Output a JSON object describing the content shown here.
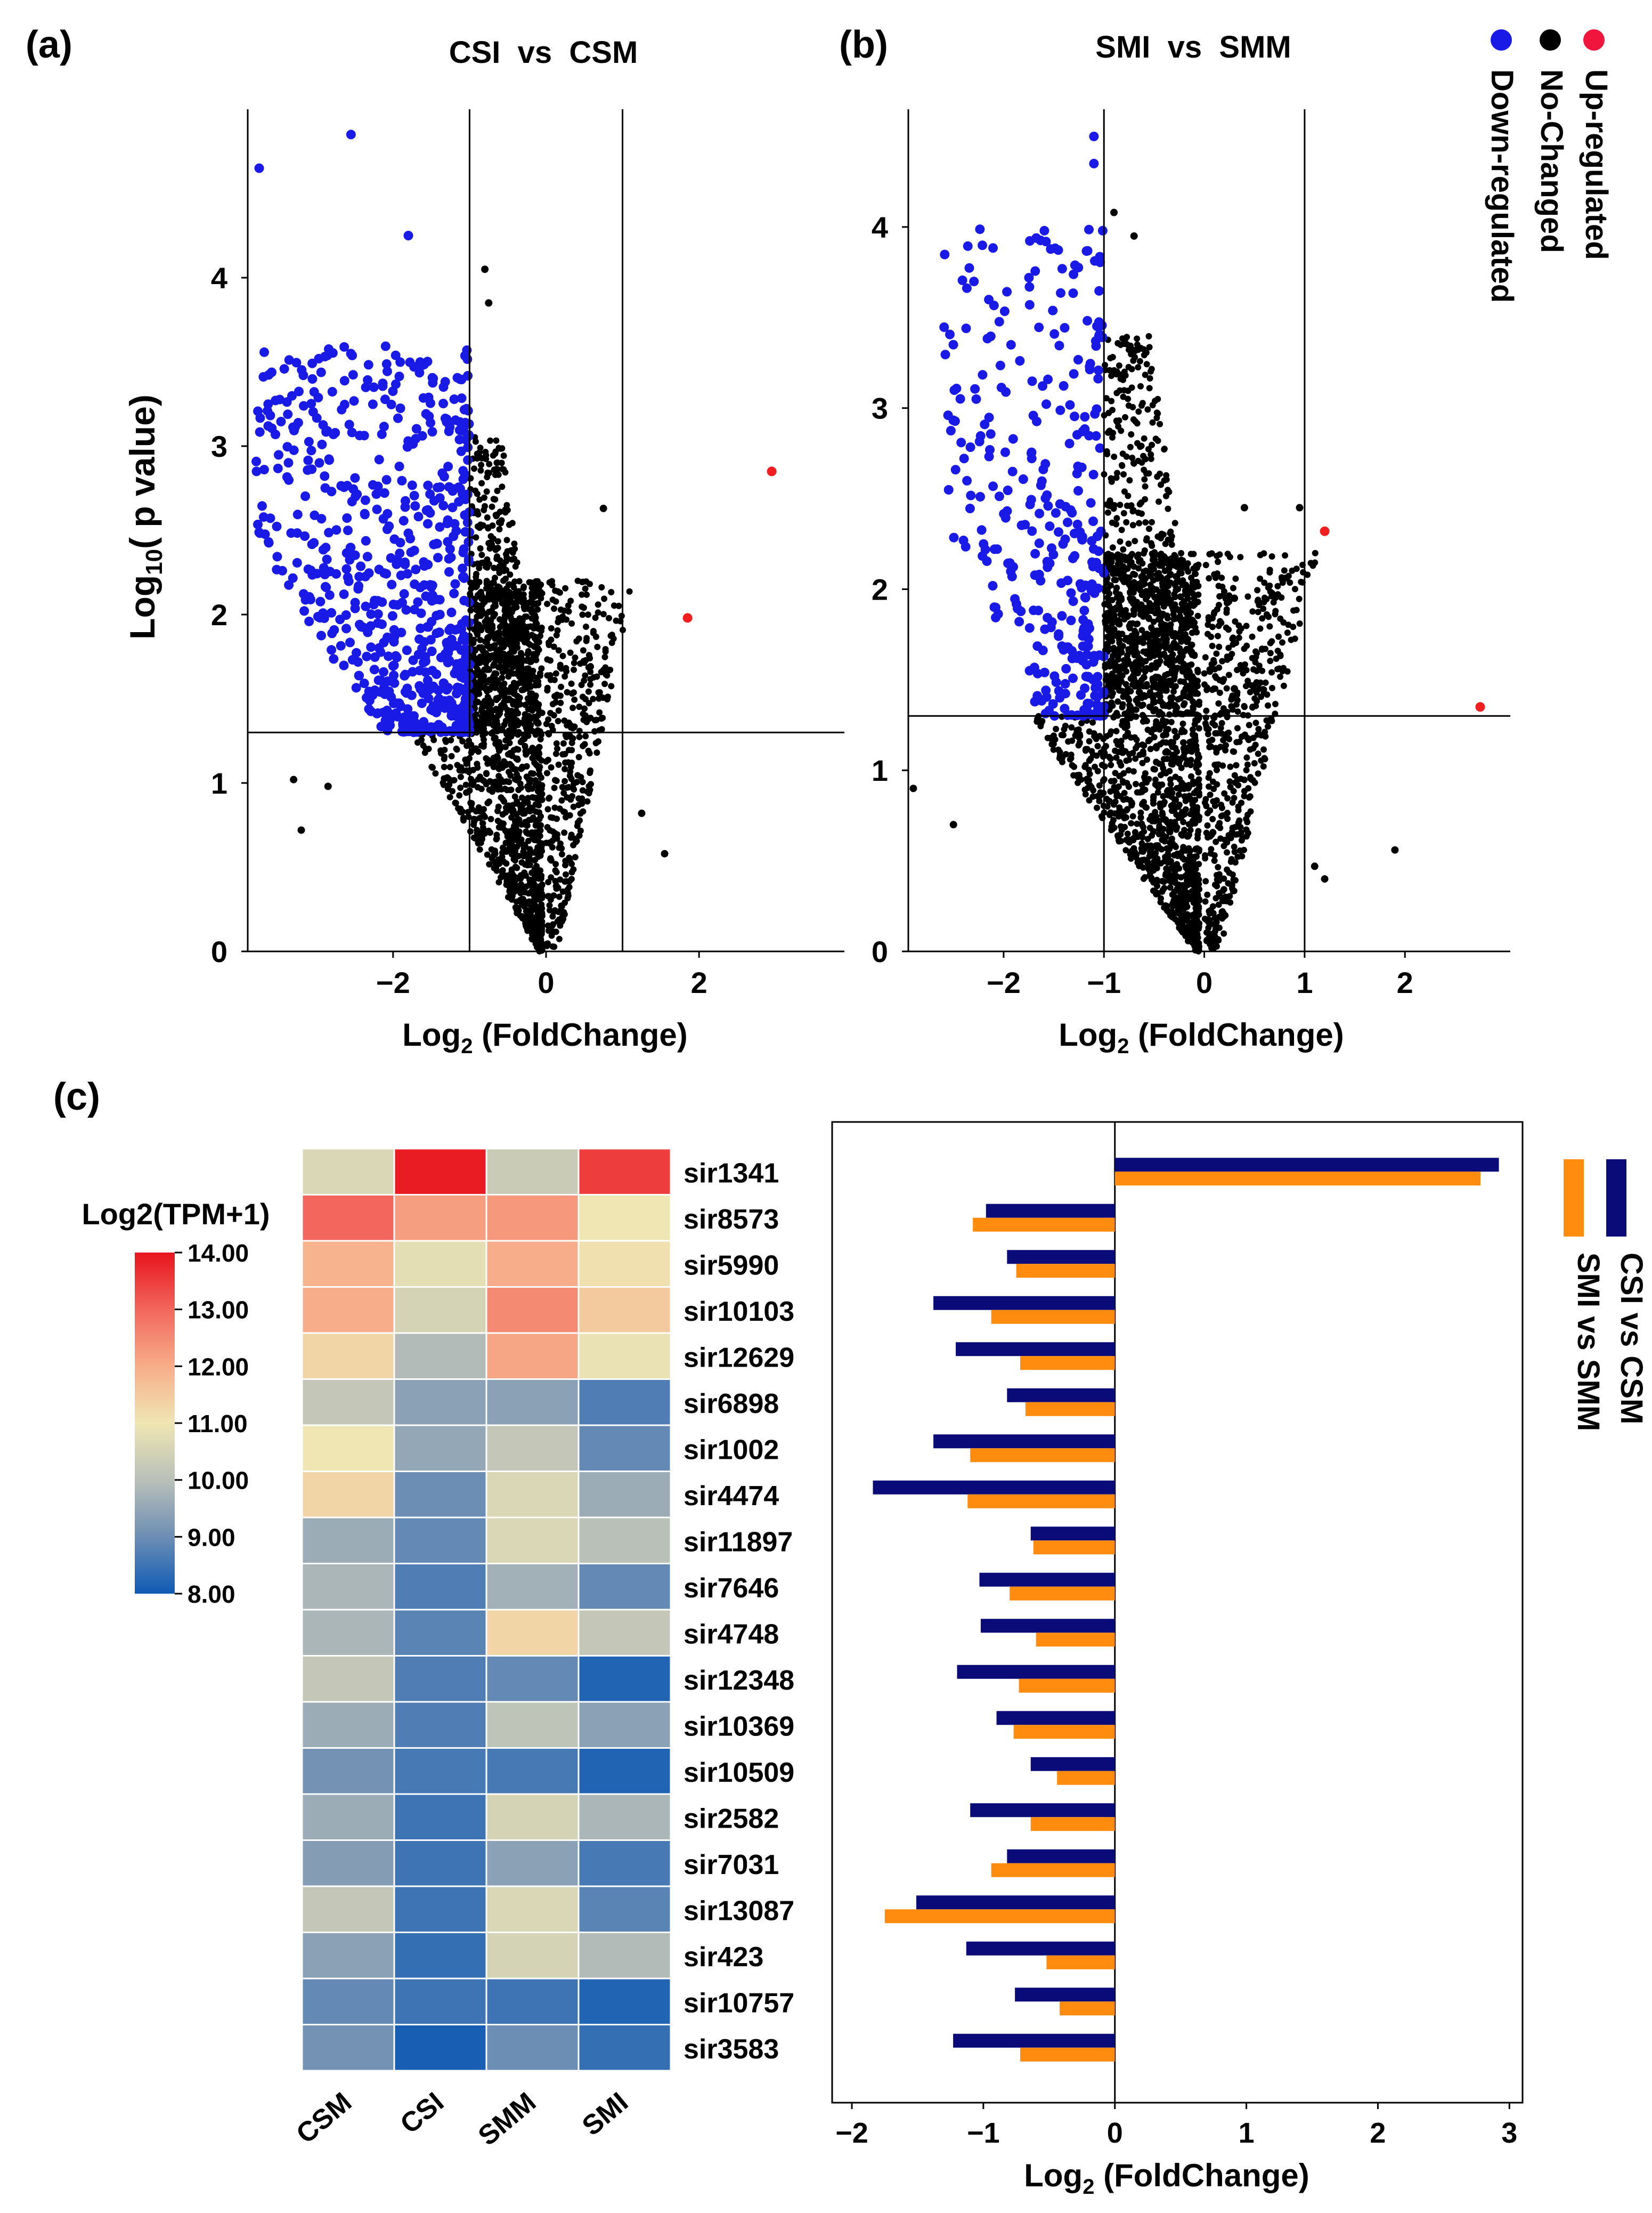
{
  "colors": {
    "down": "#1a1ae6",
    "nochange": "#000000",
    "up": "#f01e1e",
    "csi_bar": "#0a0a78",
    "smi_bar": "#ff8c0f",
    "grid": "#000000"
  },
  "legend_volcano": [
    {
      "label": "Up-regulated",
      "color": "#f0153c"
    },
    {
      "label": "No-Changed",
      "color": "#000000"
    },
    {
      "label": "Down-regulated",
      "color": "#1a1ae6"
    }
  ],
  "chart_data": [
    {
      "panel": "(a)",
      "type": "scatter",
      "title": "CSI  vs  CSM",
      "xlabel_main": "Log",
      "xlabel_sub": "2",
      "xlabel_rest": " (FoldChange)",
      "ylabel_main": "Log",
      "ylabel_sub": "10",
      "ylabel_rest": "( p value)",
      "xlim": [
        -3.9,
        3.9
      ],
      "ylim": [
        0,
        5.0
      ],
      "xticks": [
        -2,
        0,
        2
      ],
      "yticks": [
        0,
        1,
        2,
        3,
        4
      ],
      "xtick_labels": [
        "−2",
        "0",
        "2"
      ],
      "ytick_labels": [
        "0",
        "1",
        "2",
        "3",
        "4"
      ],
      "vlines": [
        -1,
        1
      ],
      "hline": 1.3,
      "up_points": [
        [
          2.95,
          2.85
        ],
        [
          1.85,
          1.98
        ]
      ],
      "outlier_points": [
        [
          -3.75,
          4.65
        ],
        [
          -2.55,
          4.85
        ],
        [
          -1.8,
          4.25
        ],
        [
          -0.8,
          4.05
        ],
        [
          -0.75,
          3.85
        ],
        [
          0.75,
          2.63
        ],
        [
          1.25,
          0.82
        ],
        [
          1.55,
          0.58
        ],
        [
          -3.2,
          0.72
        ],
        [
          -3.3,
          1.02
        ],
        [
          -2.85,
          0.98
        ]
      ],
      "cloud": {
        "n_down": 650,
        "n_nochange": 1700,
        "seed": 11,
        "x_min": -3.8,
        "y_top": 3.6
      }
    },
    {
      "panel": "(b)",
      "type": "scatter",
      "title": "SMI  vs  SMM",
      "xlabel_main": "Log",
      "xlabel_sub": "2",
      "xlabel_rest": " (FoldChange)",
      "xlim": [
        -2.95,
        3.05
      ],
      "ylim": [
        0,
        4.65
      ],
      "xticks": [
        -2,
        -1,
        0,
        1,
        2
      ],
      "yticks": [
        0,
        1,
        2,
        3,
        4
      ],
      "xtick_labels": [
        "−2",
        "−1",
        "0",
        "1",
        "2"
      ],
      "ytick_labels": [
        "0",
        "1",
        "2",
        "3",
        "4"
      ],
      "vlines": [
        -1,
        1
      ],
      "hline": 1.3,
      "up_points": [
        [
          2.75,
          1.35
        ],
        [
          1.2,
          2.32
        ]
      ],
      "outlier_points": [
        [
          -1.1,
          4.5
        ],
        [
          -1.1,
          4.35
        ],
        [
          -0.9,
          4.08
        ],
        [
          -0.7,
          3.95
        ],
        [
          0.4,
          2.45
        ],
        [
          0.95,
          2.45
        ],
        [
          1.1,
          0.47
        ],
        [
          1.2,
          0.4
        ],
        [
          1.9,
          0.56
        ],
        [
          -2.9,
          0.9
        ],
        [
          -2.5,
          0.7
        ],
        [
          0.3,
          1.45
        ],
        [
          0.3,
          1.95
        ]
      ],
      "cloud": {
        "n_down": 330,
        "n_nochange": 2200,
        "seed": 23,
        "x_min": -2.6,
        "y_top": 4.0
      }
    },
    {
      "panel": "(c)",
      "type": "heatmap",
      "colorbar_title": "Log2(TPM+1)",
      "colorbar_ticks": [
        "14.00",
        "13.00",
        "12.00",
        "11.00",
        "10.00",
        "9.00",
        "8.00"
      ],
      "vmin": 8.0,
      "vmax": 14.0,
      "columns": [
        "CSM",
        "CSI",
        "SMM",
        "SMI"
      ],
      "rows": [
        "sir1341",
        "sir8573",
        "sir5990",
        "sir10103",
        "sir12629",
        "sir6898",
        "sir1002",
        "sir4474",
        "sir11897",
        "sir7646",
        "sir4748",
        "sir12348",
        "sir10369",
        "sir10509",
        "sir2582",
        "sir7031",
        "sir13087",
        "sir423",
        "sir10757",
        "sir3583"
      ],
      "values": [
        [
          10.6,
          13.9,
          10.3,
          13.5
        ],
        [
          13.0,
          12.2,
          12.3,
          11.0
        ],
        [
          11.9,
          10.8,
          12.0,
          11.1
        ],
        [
          12.0,
          10.5,
          12.5,
          11.5
        ],
        [
          11.3,
          9.9,
          12.1,
          10.9
        ],
        [
          10.2,
          9.4,
          9.4,
          8.7
        ],
        [
          11.0,
          9.5,
          10.2,
          8.9
        ],
        [
          11.3,
          9.0,
          10.6,
          9.6
        ],
        [
          9.6,
          8.9,
          10.6,
          10.0
        ],
        [
          9.8,
          8.7,
          9.7,
          8.9
        ],
        [
          9.8,
          8.8,
          11.3,
          10.2
        ],
        [
          10.2,
          8.7,
          8.9,
          8.2
        ],
        [
          9.6,
          8.7,
          10.1,
          9.4
        ],
        [
          9.1,
          8.6,
          8.6,
          8.2
        ],
        [
          9.6,
          8.5,
          10.5,
          9.8
        ],
        [
          9.3,
          8.5,
          9.4,
          8.6
        ],
        [
          10.2,
          8.5,
          10.6,
          8.8
        ],
        [
          9.4,
          8.4,
          10.5,
          9.9
        ],
        [
          8.9,
          8.5,
          8.5,
          8.2
        ],
        [
          9.1,
          8.1,
          9.0,
          8.4
        ]
      ]
    },
    {
      "panel": "(c)",
      "type": "bar",
      "orientation": "horizontal",
      "xlabel_main": "Log",
      "xlabel_sub": "2",
      "xlabel_rest": " (FoldChange)",
      "xlim": [
        -2.15,
        3.1
      ],
      "xticks": [
        -2,
        -1,
        0,
        1,
        2,
        3
      ],
      "xtick_labels": [
        "−2",
        "−1",
        "0",
        "1",
        "2",
        "3"
      ],
      "categories": [
        "sir1341",
        "sir8573",
        "sir5990",
        "sir10103",
        "sir12629",
        "sir6898",
        "sir1002",
        "sir4474",
        "sir11897",
        "sir7646",
        "sir4748",
        "sir12348",
        "sir10369",
        "sir10509",
        "sir2582",
        "sir7031",
        "sir13087",
        "sir423",
        "sir10757",
        "sir3583"
      ],
      "series": [
        {
          "name": "CSI vs CSM",
          "values": [
            2.92,
            -0.98,
            -0.82,
            -1.38,
            -1.21,
            -0.82,
            -1.38,
            -1.84,
            -0.64,
            -1.03,
            -1.02,
            -1.2,
            -0.9,
            -0.64,
            -1.1,
            -0.82,
            -1.51,
            -1.13,
            -0.76,
            -1.23
          ]
        },
        {
          "name": "SMI vs SMM",
          "values": [
            2.78,
            -1.08,
            -0.75,
            -0.94,
            -0.72,
            -0.68,
            -1.1,
            -1.12,
            -0.62,
            -0.8,
            -0.6,
            -0.73,
            -0.77,
            -0.44,
            -0.64,
            -0.94,
            -1.75,
            -0.52,
            -0.42,
            -0.72
          ]
        }
      ]
    }
  ]
}
